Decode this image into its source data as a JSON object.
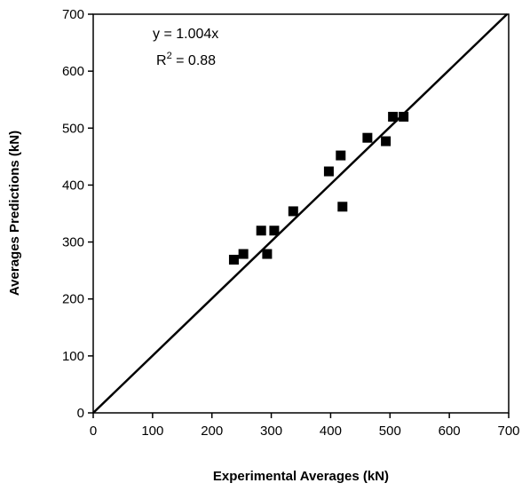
{
  "chart_data": {
    "type": "scatter",
    "xlabel": "Experimental Averages (kN)",
    "ylabel": "Averages Predictions (kN)",
    "xlim": [
      0,
      700
    ],
    "ylim": [
      0,
      700
    ],
    "x_ticks": [
      "0",
      "100",
      "200",
      "300",
      "400",
      "500",
      "600",
      "700"
    ],
    "y_ticks": [
      "0",
      "100",
      "200",
      "300",
      "400",
      "500",
      "600",
      "700"
    ],
    "grid": false,
    "legend": "none",
    "marker": "square",
    "marker_color": "#000000",
    "trendline": {
      "slope": 1.004,
      "intercept": 0,
      "color": "#000000"
    },
    "annotations": {
      "equation": "y = 1.004x",
      "r2_prefix": "R",
      "r2_sup": "2",
      "r2_suffix": " = 0.88"
    },
    "series": [
      {
        "points": [
          {
            "x": 237,
            "y": 269
          },
          {
            "x": 253,
            "y": 279
          },
          {
            "x": 283,
            "y": 320
          },
          {
            "x": 293,
            "y": 279
          },
          {
            "x": 305,
            "y": 320
          },
          {
            "x": 337,
            "y": 354
          },
          {
            "x": 397,
            "y": 424
          },
          {
            "x": 417,
            "y": 452
          },
          {
            "x": 420,
            "y": 362
          },
          {
            "x": 462,
            "y": 483
          },
          {
            "x": 493,
            "y": 477
          },
          {
            "x": 505,
            "y": 520
          },
          {
            "x": 523,
            "y": 520
          }
        ]
      }
    ]
  }
}
